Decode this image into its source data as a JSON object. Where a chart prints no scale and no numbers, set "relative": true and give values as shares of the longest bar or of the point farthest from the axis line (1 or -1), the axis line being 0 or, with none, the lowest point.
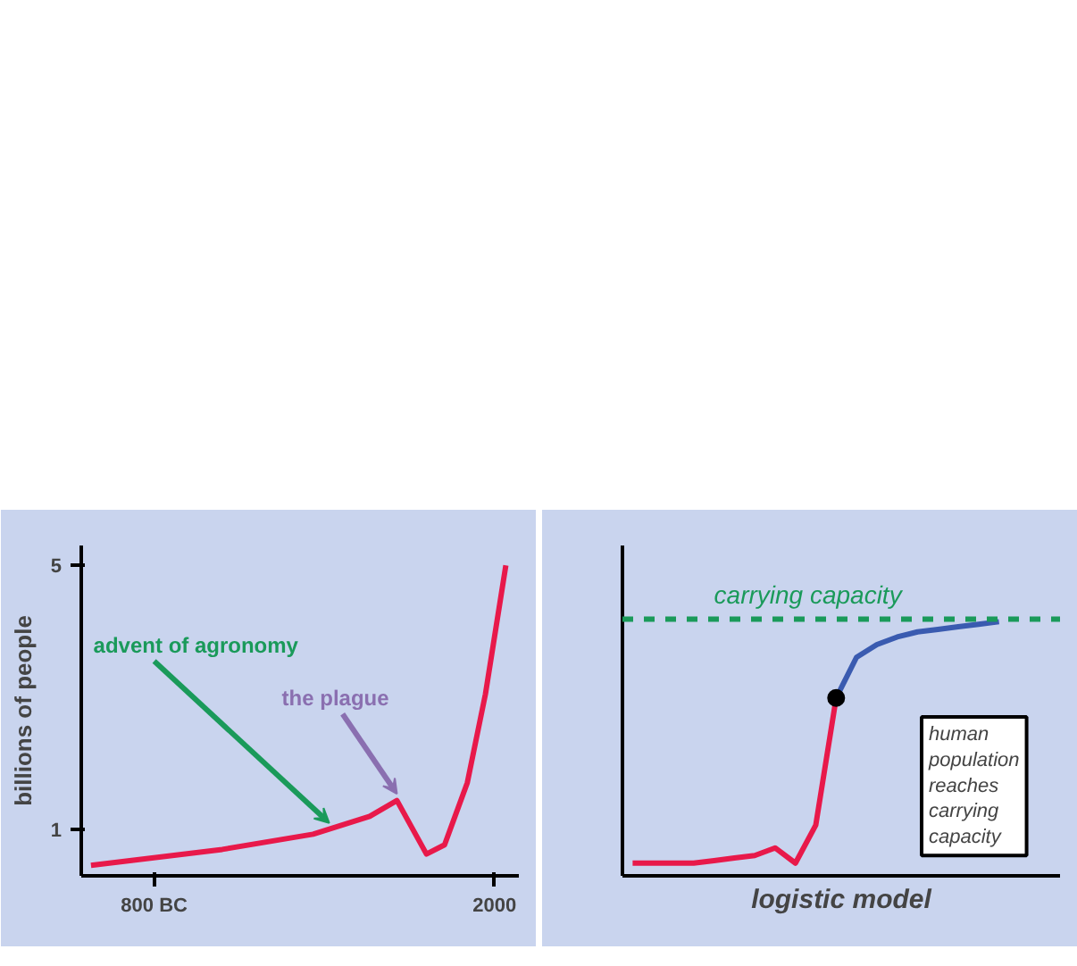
{
  "chart_data": [
    {
      "type": "line",
      "ylabel": "billions of people",
      "xlim": [
        -1400,
        2200
      ],
      "ylim": [
        0.3,
        5.3
      ],
      "xticks": [
        {
          "value": -800,
          "label": "800 BC"
        },
        2000
      ],
      "yticks": [
        1,
        5
      ],
      "grid": false,
      "series": [
        {
          "color": "#e8194a",
          "x": [
            -1320,
            -240,
            507,
            973,
            1197,
            1440,
            1589,
            1776,
            1925,
            2093
          ],
          "values": [
            0.46,
            0.7,
            0.93,
            1.2,
            1.44,
            0.63,
            0.77,
            1.71,
            3.05,
            5.0
          ]
        }
      ],
      "annotations": [
        {
          "text": "advent of agronomy",
          "x": 640,
          "y": 1.0
        },
        {
          "text": "the plague",
          "x": 1197,
          "y": 1.44
        }
      ]
    },
    {
      "type": "line",
      "relative": true,
      "xlabel": "logistic model",
      "grid": false,
      "categories": [
        null,
        null,
        null,
        null,
        null,
        null,
        null,
        null,
        null,
        null,
        null,
        null,
        null,
        null,
        null,
        null,
        null,
        null,
        null
      ],
      "series": [
        {
          "color": "#e8194a",
          "values": [
            0.05,
            0.05,
            0.05,
            0.05,
            0.06,
            0.07,
            0.08,
            0.11,
            0.05,
            0.2,
            0.7,
            null,
            null,
            null,
            null,
            null,
            null,
            null,
            null
          ]
        },
        {
          "color": "#3a5bb0",
          "values": [
            null,
            null,
            null,
            null,
            null,
            null,
            null,
            null,
            null,
            null,
            0.7,
            0.86,
            0.91,
            0.94,
            0.96,
            0.97,
            0.98,
            0.99,
            1.0
          ]
        }
      ],
      "ref_lines": [
        {
          "axis": "y",
          "value": 1.01,
          "label": "carrying capacity",
          "color": "#1a9a5a",
          "line_style": "dashed"
        }
      ],
      "annotations": [
        "human population reaches carrying capacity"
      ]
    }
  ]
}
